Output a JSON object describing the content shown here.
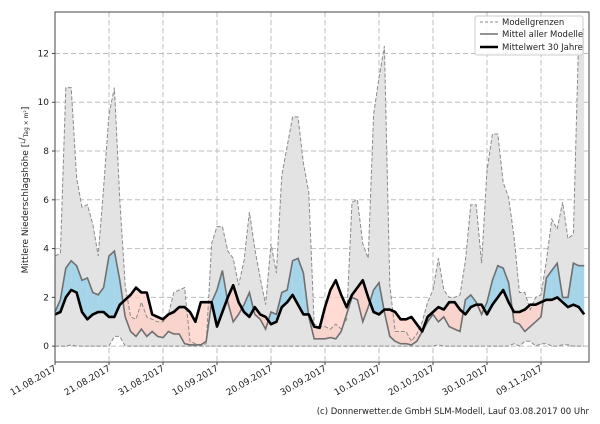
{
  "chart_data": {
    "type": "line",
    "ylabel": "Mittlere Niederschlagshöhe",
    "ylabel_unit_num": "L",
    "ylabel_unit_den": "Tag × m²",
    "ylim": [
      -0.65,
      13.7
    ],
    "yticks": [
      0,
      2,
      4,
      6,
      8,
      10,
      12
    ],
    "xticks": [
      "11.08.2017",
      "21.08.2017",
      "31.08.2017",
      "10.09.2017",
      "20.09.2017",
      "30.09.2017",
      "10.10.2017",
      "20.10.2017",
      "30.10.2017",
      "09.11.2017"
    ],
    "grid": true,
    "legend_position": "top-right",
    "colors": {
      "band": "#e3e3e3",
      "band_edge": "#8a8a8a",
      "mean": "#707070",
      "clim": "#000000",
      "above": "#9fd3ea",
      "below": "#ffcfc6"
    },
    "x": [
      "11.08.2017",
      "12.08.2017",
      "13.08.2017",
      "14.08.2017",
      "15.08.2017",
      "16.08.2017",
      "17.08.2017",
      "18.08.2017",
      "19.08.2017",
      "20.08.2017",
      "21.08.2017",
      "22.08.2017",
      "23.08.2017",
      "24.08.2017",
      "25.08.2017",
      "26.08.2017",
      "27.08.2017",
      "28.08.2017",
      "29.08.2017",
      "30.08.2017",
      "31.08.2017",
      "01.09.2017",
      "02.09.2017",
      "03.09.2017",
      "04.09.2017",
      "05.09.2017",
      "06.09.2017",
      "07.09.2017",
      "08.09.2017",
      "09.09.2017",
      "10.09.2017",
      "11.09.2017",
      "12.09.2017",
      "13.09.2017",
      "14.09.2017",
      "15.09.2017",
      "16.09.2017",
      "17.09.2017",
      "18.09.2017",
      "19.09.2017",
      "20.09.2017",
      "21.09.2017",
      "22.09.2017",
      "23.09.2017",
      "24.09.2017",
      "25.09.2017",
      "26.09.2017",
      "27.09.2017",
      "28.09.2017",
      "29.09.2017",
      "30.09.2017",
      "01.10.2017",
      "02.10.2017",
      "03.10.2017",
      "04.10.2017",
      "05.10.2017",
      "06.10.2017",
      "07.10.2017",
      "08.10.2017",
      "09.10.2017",
      "10.10.2017",
      "11.10.2017",
      "12.10.2017",
      "13.10.2017",
      "14.10.2017",
      "15.10.2017",
      "16.10.2017",
      "17.10.2017",
      "18.10.2017",
      "19.10.2017",
      "20.10.2017",
      "21.10.2017",
      "22.10.2017",
      "23.10.2017",
      "24.10.2017",
      "25.10.2017",
      "26.10.2017",
      "27.10.2017",
      "28.10.2017",
      "29.10.2017",
      "30.10.2017",
      "31.10.2017",
      "01.11.2017",
      "02.11.2017",
      "03.11.2017",
      "04.11.2017",
      "05.11.2017",
      "06.11.2017",
      "07.11.2017",
      "08.11.2017",
      "09.11.2017",
      "10.11.2017",
      "11.11.2017",
      "12.11.2017",
      "13.11.2017",
      "14.11.2017",
      "15.11.2017",
      "16.11.2017",
      "17.11.2017"
    ],
    "series": [
      {
        "name": "Modellgrenzen",
        "role": "upper",
        "values": [
          3.7,
          3.8,
          10.6,
          10.6,
          6.9,
          5.7,
          5.8,
          5.0,
          3.7,
          6.5,
          9.5,
          10.6,
          6.0,
          2.5,
          1.2,
          1.1,
          1.8,
          1.2,
          1.1,
          1.0,
          1.0,
          1.3,
          2.2,
          2.3,
          2.4,
          0.2,
          0.1,
          0.05,
          0.1,
          4.2,
          4.9,
          4.9,
          3.9,
          3.6,
          2.5,
          3.5,
          5.5,
          4.0,
          2.8,
          1.7,
          4.2,
          3.0,
          7.0,
          8.2,
          9.4,
          9.4,
          7.5,
          6.3,
          0.9,
          0.8,
          0.8,
          0.7,
          0.9,
          0.7,
          1.1,
          5.9,
          6.0,
          4.2,
          3.6,
          9.5,
          11.0,
          12.3,
          2.5,
          0.6,
          0.6,
          0.6,
          0.2,
          0.5,
          1.0,
          1.8,
          2.3,
          3.6,
          2.3,
          2.0,
          2.0,
          2.1,
          3.5,
          5.8,
          5.8,
          3.4,
          7.2,
          8.7,
          8.7,
          6.7,
          6.1,
          4.5,
          2.2,
          2.2,
          1.5,
          2.0,
          2.1,
          3.5,
          5.2,
          4.8,
          5.9,
          4.4,
          4.6,
          12.9,
          13.0
        ]
      },
      {
        "name": "Modellgrenzen",
        "role": "lower",
        "values": [
          0,
          0,
          0,
          0.05,
          0,
          0,
          0,
          0,
          0,
          0,
          0,
          0.4,
          0.4,
          0,
          0,
          0,
          0,
          0,
          0,
          0,
          0,
          0,
          0,
          0,
          0,
          0,
          0,
          0,
          0,
          0,
          0,
          0,
          0,
          0,
          0,
          0,
          0,
          0,
          0,
          0,
          0,
          0,
          0,
          0,
          0,
          0,
          0,
          0,
          0,
          0,
          0,
          0,
          0,
          0,
          0,
          0,
          0,
          0,
          0,
          0,
          0,
          0,
          0,
          0,
          0,
          0,
          0,
          0,
          0,
          0,
          0,
          0.05,
          0,
          0,
          0,
          0,
          0,
          0,
          0,
          0,
          0,
          0,
          0,
          0,
          0,
          0.1,
          0,
          0.2,
          0.2,
          0,
          0.1,
          0.1,
          0,
          0,
          0.05,
          0.05,
          0,
          0,
          0
        ]
      },
      {
        "name": "Mittel aller Modelle",
        "role": "mean",
        "values": [
          1.4,
          1.9,
          3.2,
          3.5,
          3.3,
          2.7,
          2.8,
          2.2,
          2.1,
          2.4,
          3.7,
          3.9,
          2.7,
          1.2,
          0.6,
          0.4,
          0.7,
          0.4,
          0.6,
          0.4,
          0.35,
          0.6,
          0.5,
          0.5,
          0.1,
          0.05,
          0.05,
          0.05,
          0.2,
          1.8,
          2.3,
          3.1,
          1.8,
          1.0,
          1.3,
          1.7,
          2.2,
          1.3,
          1.1,
          0.7,
          1.4,
          1.3,
          2.2,
          2.3,
          3.5,
          3.6,
          3.0,
          1.2,
          0.3,
          0.3,
          0.3,
          0.35,
          0.3,
          0.6,
          1.3,
          2.0,
          1.9,
          1.0,
          1.6,
          2.3,
          2.6,
          1.4,
          0.4,
          0.2,
          0.1,
          0.1,
          0.05,
          0.2,
          0.6,
          1.0,
          1.3,
          1.0,
          1.2,
          0.8,
          0.7,
          0.6,
          1.9,
          2.1,
          1.8,
          1.3,
          1.8,
          2.7,
          3.3,
          3.2,
          2.6,
          1.0,
          0.9,
          0.6,
          0.8,
          1.0,
          1.2,
          2.8,
          3.1,
          3.4,
          2.0,
          2.0,
          3.4,
          3.3,
          3.3
        ]
      },
      {
        "name": "Mittelwert 30 Jahre",
        "role": "clim",
        "values": [
          1.3,
          1.4,
          2.0,
          2.3,
          2.2,
          1.4,
          1.1,
          1.3,
          1.4,
          1.4,
          1.2,
          1.2,
          1.7,
          1.9,
          2.1,
          2.4,
          2.2,
          2.2,
          1.3,
          1.2,
          1.1,
          1.3,
          1.4,
          1.6,
          1.6,
          1.4,
          1.0,
          1.8,
          1.8,
          1.8,
          0.8,
          1.4,
          2.0,
          2.5,
          1.8,
          1.4,
          1.2,
          1.6,
          1.3,
          1.2,
          0.9,
          1.0,
          1.6,
          1.8,
          2.1,
          1.7,
          1.3,
          1.3,
          0.8,
          0.75,
          1.6,
          2.3,
          2.7,
          2.1,
          1.6,
          2.1,
          2.4,
          2.7,
          2.0,
          1.4,
          1.3,
          1.5,
          1.5,
          1.4,
          1.1,
          1.1,
          1.2,
          0.9,
          0.6,
          1.2,
          1.4,
          1.6,
          1.5,
          1.8,
          1.8,
          1.5,
          1.3,
          1.6,
          1.7,
          1.7,
          1.3,
          1.7,
          2.0,
          2.3,
          1.8,
          1.4,
          1.4,
          1.5,
          1.7,
          1.7,
          1.8,
          1.9,
          1.9,
          2.0,
          1.8,
          1.6,
          1.7,
          1.6,
          1.3
        ]
      }
    ],
    "legend": [
      {
        "label": "Modellgrenzen",
        "style": "dashed"
      },
      {
        "label": "Mittel aller Modelle",
        "style": "solid-grey"
      },
      {
        "label": "Mittelwert 30 Jahre",
        "style": "solid-black-thick"
      }
    ]
  },
  "footer": {
    "credit": "(c) Donnerwetter.de GmbH SLM-Modell, Lauf 03.08.2017 00 Uhr"
  }
}
